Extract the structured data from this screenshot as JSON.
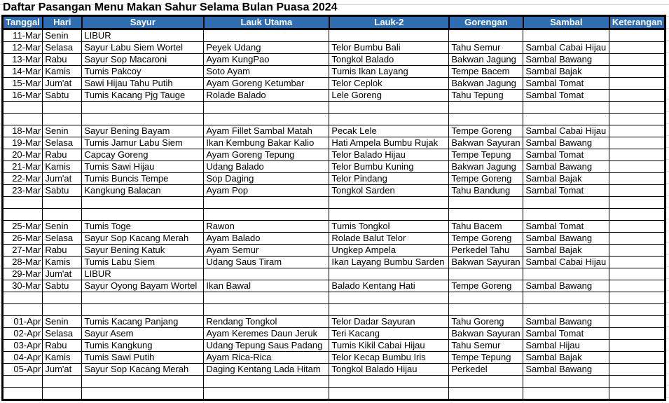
{
  "title": "Daftar Pasangan Menu Makan Sahur Selama Bulan Puasa 2024",
  "header_color": "#2f6db3",
  "columns": [
    "Tanggal",
    "Hari",
    "Sayur",
    "Lauk Utama",
    "Lauk-2",
    "Gorengan",
    "Sambal",
    "Keterangan"
  ],
  "rows": [
    [
      "11-Mar",
      "Senin",
      "LIBUR",
      "",
      "",
      "",
      "",
      ""
    ],
    [
      "12-Mar",
      "Selasa",
      "Sayur Labu Siem Wortel",
      "Peyek Udang",
      "Telor Bumbu Bali",
      "Tahu Semur",
      "Sambal Cabai Hijau",
      ""
    ],
    [
      "13-Mar",
      "Rabu",
      "Sayur Sop Macaroni",
      "Ayam KungPao",
      "Tongkol Balado",
      "Bakwan Jagung",
      "Sambal Bawang",
      ""
    ],
    [
      "14-Mar",
      "Kamis",
      "Tumis Pakcoy",
      "Soto Ayam",
      "Tumis Ikan Layang",
      "Tempe Bacem",
      "Sambal Bajak",
      ""
    ],
    [
      "15-Mar",
      "Jum'at",
      "Sawi Hijau Tahu Putih",
      "Ayam Goreng Ketumbar",
      "Telor Ceplok",
      "Bakwan Jagung",
      "Sambal Tomat",
      ""
    ],
    [
      "16-Mar",
      "Sabtu",
      "Tumis Kacang Pjg Tauge",
      "Rolade Balado",
      "Lele Goreng",
      "Tahu Tepung",
      "Sambal Tomat",
      ""
    ],
    [
      "",
      "",
      "",
      "",
      "",
      "",
      "",
      ""
    ],
    [
      "",
      "",
      "",
      "",
      "",
      "",
      "",
      ""
    ],
    [
      "18-Mar",
      "Senin",
      "Sayur Bening Bayam",
      "Ayam Fillet Sambal Matah",
      "Pecak Lele",
      "Tempe Goreng",
      "Sambal Cabai Hijau",
      ""
    ],
    [
      "19-Mar",
      "Selasa",
      "Tumis Jamur Labu Siem",
      "Ikan Kembung Bakar Kalio",
      "Hati Ampela Bumbu Rujak",
      "Bakwan Sayuran",
      "Sambal Bawang",
      ""
    ],
    [
      "20-Mar",
      "Rabu",
      "Capcay Goreng",
      "Ayam Goreng Tepung",
      "Telor Balado Hijau",
      "Tempe Tepung",
      "Sambal Tomat",
      ""
    ],
    [
      "21-Mar",
      "Kamis",
      "Tumis Sawi Hijau",
      "Udang Balado",
      "Telor Bumbu Kuning",
      "Bakwan Jagung",
      "Sambal Bawang",
      ""
    ],
    [
      "22-Mar",
      "Jum'at",
      "Tumis Buncis Tempe",
      "Sop Daging",
      "Telor Pindang",
      "Tempe Goreng",
      "Sambal Bajak",
      ""
    ],
    [
      "23-Mar",
      "Sabtu",
      "Kangkung Balacan",
      "Ayam Pop",
      "Tongkol Sarden",
      "Tahu Bandung",
      "Sambal Tomat",
      ""
    ],
    [
      "",
      "",
      "",
      "",
      "",
      "",
      "",
      ""
    ],
    [
      "",
      "",
      "",
      "",
      "",
      "",
      "",
      ""
    ],
    [
      "25-Mar",
      "Senin",
      "Tumis Toge",
      "Rawon",
      "Tumis Tongkol",
      "Tahu Bacem",
      "Sambal Tomat",
      ""
    ],
    [
      "26-Mar",
      "Selasa",
      "Sayur Sop Kacang Merah",
      "Ayam Balado",
      "Rolade Balut Telor",
      "Tempe Goreng",
      "Sambal Bawang",
      ""
    ],
    [
      "27-Mar",
      "Rabu",
      "Sayur Bening Katuk",
      "Ayam Semur",
      "Ungkep Ampela",
      "Perkedel Tahu",
      "Sambal Bajak",
      ""
    ],
    [
      "28-Mar",
      "Kamis",
      "Tumis Labu Siem",
      "Udang Saus Tiram",
      "Ikan Layang Bumbu Sarden",
      "Bakwan Sayuran",
      "Sambal Cabai Hijau",
      ""
    ],
    [
      "29-Mar",
      "Jum'at",
      "LIBUR",
      "",
      "",
      "",
      "",
      ""
    ],
    [
      "30-Mar",
      "Sabtu",
      "Sayur Oyong Bayam Wortel",
      "Ikan Bawal",
      "Balado Kentang Hati",
      "Tempe Goreng",
      "Sambal Bawang",
      ""
    ],
    [
      "",
      "",
      "",
      "",
      "",
      "",
      "",
      ""
    ],
    [
      "",
      "",
      "",
      "",
      "",
      "",
      "",
      ""
    ],
    [
      "01-Apr",
      "Senin",
      "Tumis Kacang Panjang",
      "Rendang Tongkol",
      "Telor Dadar Sayuran",
      "Tahu Goreng",
      "Sambal Bawang",
      ""
    ],
    [
      "02-Apr",
      "Selasa",
      "Sayur Asem",
      "Ayam Keremes Daun Jeruk",
      "Teri Kacang",
      "Bakwan Sayuran",
      "Sambal Tomat",
      ""
    ],
    [
      "03-Apr",
      "Rabu",
      "Tumis Kangkung",
      "Udang Tepung Saus Padang",
      "Tumis Kikil Cabai Hijau",
      "Tahu Semur",
      "Sambal Hijau",
      ""
    ],
    [
      "04-Apr",
      "Kamis",
      "Tumis Sawi Putih",
      "Ayam Rica-Rica",
      "Telor Kecap Bumbu Iris",
      "Tempe Tepung",
      "Sambal Bajak",
      ""
    ],
    [
      "05-Apr",
      "Jum'at",
      "Sayur Sop Kacang Merah",
      "Daging Kentang Lada Hitam",
      "Tongkol Balado Hijau",
      "Perkedel",
      "Sambal Bawang",
      ""
    ],
    [
      "",
      "",
      "",
      "",
      "",
      "",
      "",
      ""
    ],
    [
      "",
      "",
      "",
      "",
      "",
      "",
      "",
      ""
    ]
  ]
}
